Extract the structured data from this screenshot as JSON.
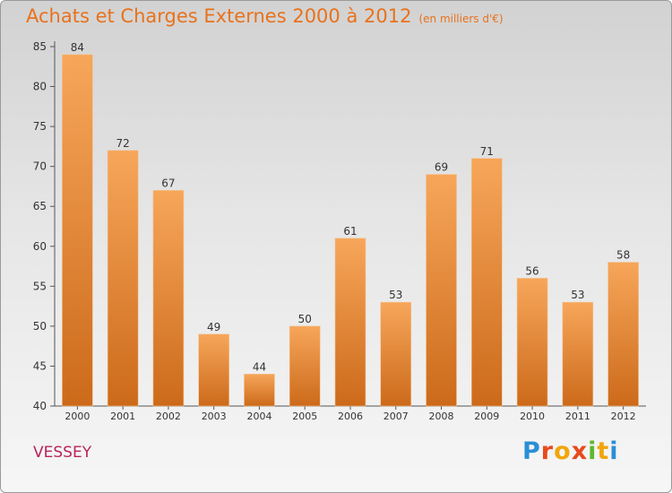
{
  "title": "Achats et Charges Externes 2000 à 2012",
  "subtitle": "(en milliers d'€)",
  "commune": "VESSEY",
  "logo": {
    "text": "Proxiti"
  },
  "colors": {
    "bar_top": "#f7a65a",
    "bar_bottom": "#cc6a1a",
    "title": "#e8721c",
    "commune": "#b8255a"
  },
  "chart_data": {
    "type": "bar",
    "title": "Achats et Charges Externes 2000 à 2012",
    "xlabel": "",
    "ylabel": "",
    "categories": [
      "2000",
      "2001",
      "2002",
      "2003",
      "2004",
      "2005",
      "2006",
      "2007",
      "2008",
      "2009",
      "2010",
      "2011",
      "2012"
    ],
    "values": [
      84,
      72,
      67,
      49,
      44,
      50,
      61,
      53,
      69,
      71,
      56,
      53,
      58
    ],
    "ylim": [
      40,
      85
    ],
    "yticks": [
      40,
      45,
      50,
      55,
      60,
      65,
      70,
      75,
      80,
      85
    ],
    "grid": false,
    "data_labels": true
  }
}
